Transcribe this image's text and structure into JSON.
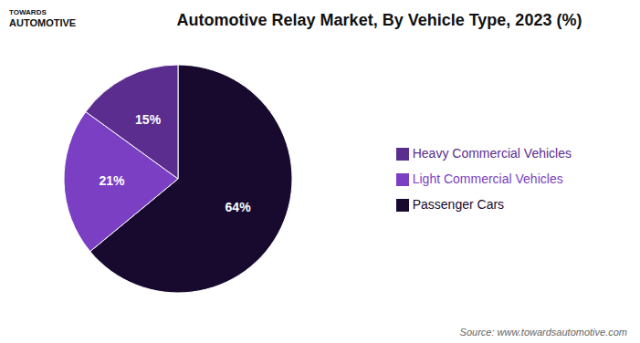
{
  "chart_data": {
    "type": "pie",
    "title": "Automotive Relay Market, By Vehicle Type, 2023 (%)",
    "categories": [
      "Passenger Cars",
      "Light Commercial Vehicles",
      "Heavy Commercial Vehicles"
    ],
    "values": [
      64,
      21,
      15
    ],
    "value_labels": [
      "64%",
      "21%",
      "15%"
    ],
    "data_labels": true,
    "colors": [
      "#170a2e",
      "#7b3fc4",
      "#5b2d8e"
    ],
    "legend": "right",
    "annotations": [
      "TOWARDS",
      "AUTOMOTIVE",
      "Source: www.towardsautomotive.com"
    ]
  }
}
